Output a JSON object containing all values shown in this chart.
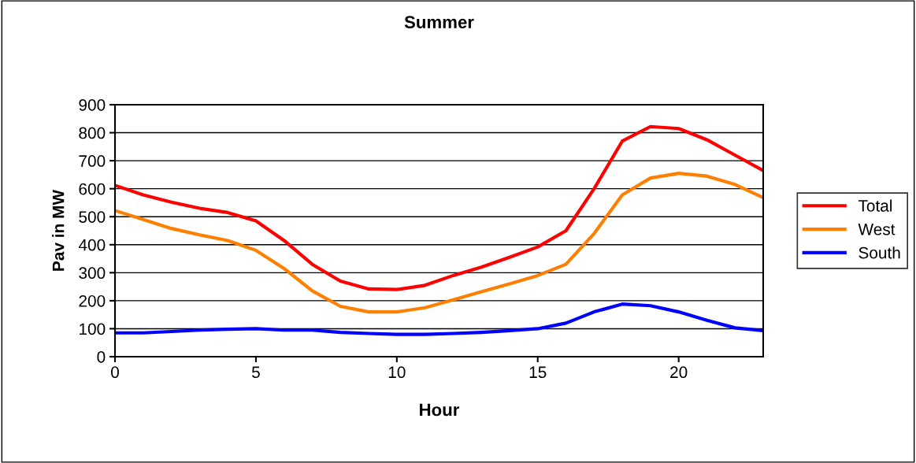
{
  "chart_data": {
    "type": "line",
    "title": "Summer",
    "xlabel": "Hour",
    "ylabel": "Pav in MW",
    "x": [
      0,
      1,
      2,
      3,
      4,
      5,
      6,
      7,
      8,
      9,
      10,
      11,
      12,
      13,
      14,
      15,
      16,
      17,
      18,
      19,
      20,
      21,
      22,
      23
    ],
    "series": [
      {
        "name": "Total",
        "color": "#ff0000",
        "values": [
          612,
          578,
          552,
          530,
          515,
          485,
          415,
          330,
          270,
          242,
          240,
          255,
          290,
          320,
          355,
          392,
          450,
          600,
          770,
          822,
          815,
          775,
          720,
          665
        ]
      },
      {
        "name": "West",
        "color": "#ff7f00",
        "values": [
          522,
          490,
          458,
          435,
          415,
          380,
          315,
          235,
          180,
          160,
          160,
          175,
          203,
          232,
          260,
          290,
          330,
          440,
          578,
          638,
          655,
          645,
          615,
          568
        ]
      },
      {
        "name": "South",
        "color": "#0000ff",
        "values": [
          85,
          85,
          90,
          95,
          98,
          100,
          95,
          95,
          87,
          83,
          80,
          80,
          83,
          87,
          93,
          100,
          120,
          160,
          188,
          182,
          160,
          130,
          103,
          93
        ]
      }
    ],
    "xlim": [
      0,
      23
    ],
    "xticks": [
      0,
      5,
      10,
      15,
      20
    ],
    "ylim": [
      0,
      900
    ],
    "yticks": [
      0,
      100,
      200,
      300,
      400,
      500,
      600,
      700,
      800,
      900
    ],
    "grid": "y",
    "legend": "right",
    "marker": "none",
    "line_style": "solid"
  }
}
